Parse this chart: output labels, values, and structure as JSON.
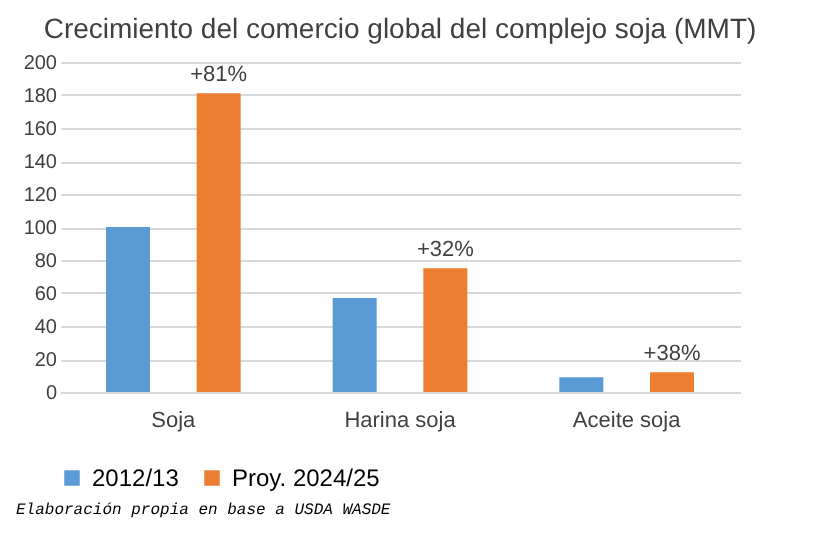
{
  "chart_data": {
    "type": "bar",
    "title": "Crecimiento del comercio global del complejo soja (MMT)",
    "categories": [
      "Soja",
      "Harina soja",
      "Aceite soja"
    ],
    "series": [
      {
        "name": "2012/13",
        "color": "#5b9bd5",
        "values": [
          100,
          57,
          9
        ]
      },
      {
        "name": "Proy. 2024/25",
        "color": "#ed7d31",
        "values": [
          181,
          75,
          12
        ]
      }
    ],
    "ylim": [
      0,
      200
    ],
    "yticks": [
      0,
      20,
      40,
      60,
      80,
      100,
      120,
      140,
      160,
      180,
      200
    ],
    "grid": "y",
    "legend": "bottom",
    "annotations": [
      "+81%",
      "+32%",
      "+38%",
      "Elaboración propia en base a USDA WASDE"
    ]
  }
}
